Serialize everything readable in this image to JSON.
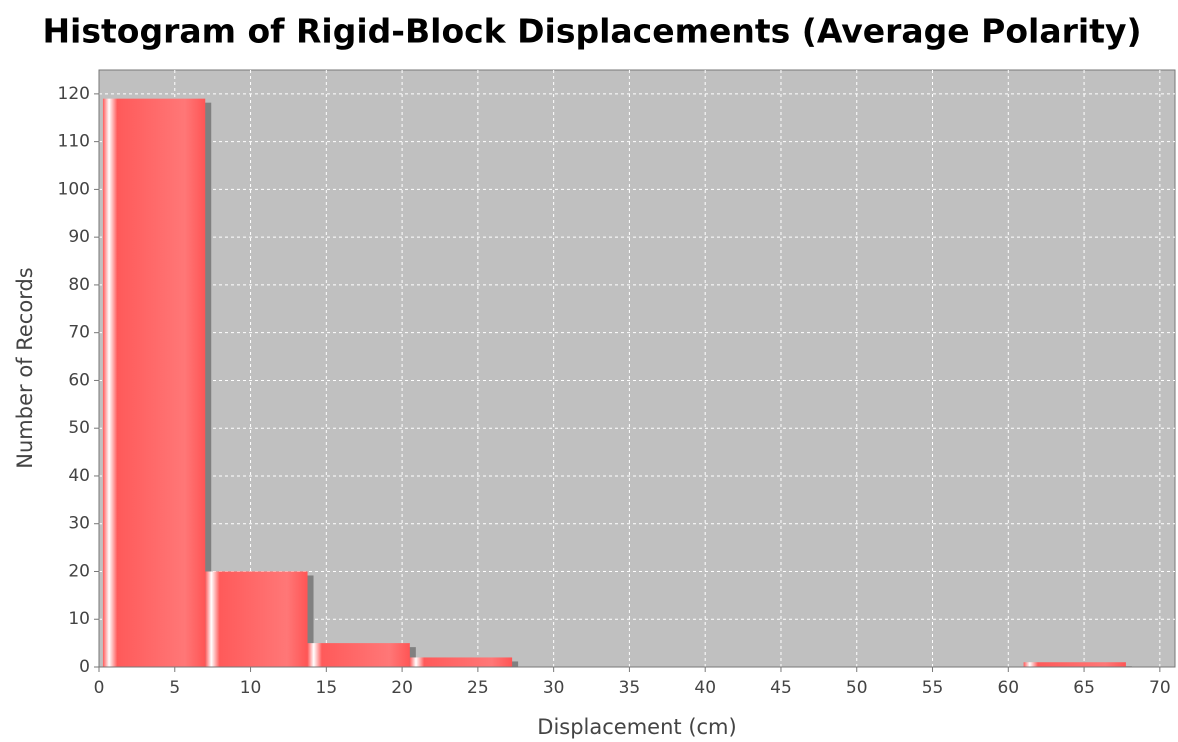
{
  "chart_data": {
    "type": "histogram",
    "title": "Histogram of Rigid-Block Displacements (Average Polarity)",
    "x_label": "Displacement (cm)",
    "y_label": "Number of Records",
    "bins": [
      0.26,
      7.01,
      13.76,
      20.51,
      27.26,
      34.01,
      40.76,
      47.51,
      54.26,
      61.01,
      67.76
    ],
    "values": [
      119,
      20,
      5,
      2,
      0,
      0,
      0,
      0,
      0,
      1
    ],
    "color": "#ff5555",
    "xlim": [
      0,
      71
    ],
    "ylim": [
      0,
      125
    ],
    "xticks": [
      0,
      5,
      10,
      15,
      20,
      25,
      30,
      35,
      40,
      45,
      50,
      55,
      60,
      65,
      70
    ],
    "yticks": [
      0,
      10,
      20,
      30,
      40,
      50,
      60,
      70,
      80,
      90,
      100,
      110,
      120
    ],
    "grid": true
  }
}
